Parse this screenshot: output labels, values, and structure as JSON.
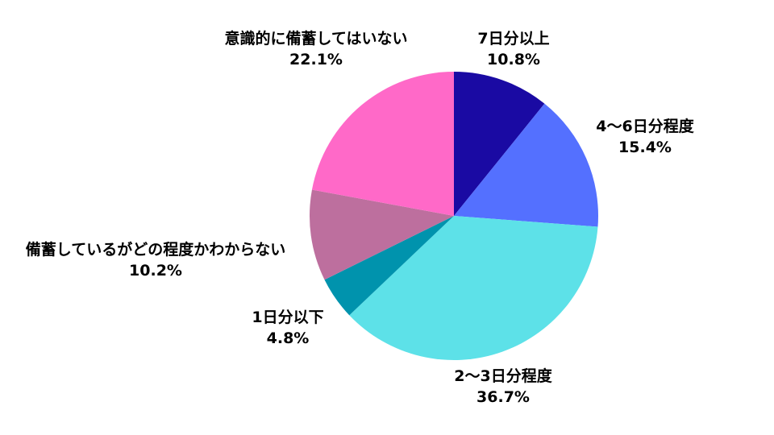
{
  "chart_data": {
    "type": "pie",
    "start_angle": "12 o'clock",
    "direction": "clockwise",
    "legend": "none",
    "slices": [
      {
        "label": "7日分以上",
        "value": 10.8,
        "value_label": "10.8%",
        "color": "#1a0aa3"
      },
      {
        "label": "4〜6日分程度",
        "value": 15.4,
        "value_label": "15.4%",
        "color": "#5470ff"
      },
      {
        "label": "2〜3日分程度",
        "value": 36.7,
        "value_label": "36.7%",
        "color": "#5de1e8"
      },
      {
        "label": "1日分以下",
        "value": 4.8,
        "value_label": "4.8%",
        "color": "#0093ad"
      },
      {
        "label": "備蓄しているがどの程度かわからない",
        "value": 10.2,
        "value_label": "10.2%",
        "color": "#bd6f9e"
      },
      {
        "label": "意識的に備蓄してはいない",
        "value": 22.1,
        "value_label": "22.1%",
        "color": "#ff69c8"
      }
    ]
  }
}
